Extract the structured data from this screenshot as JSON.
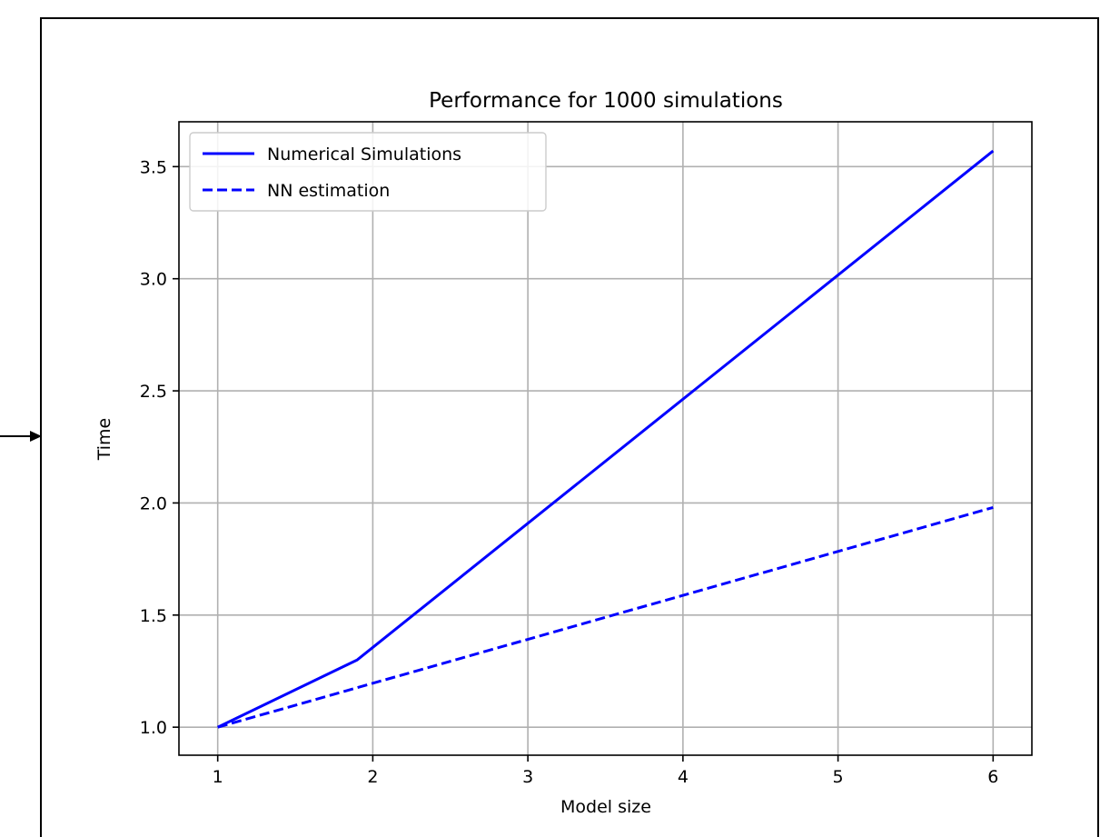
{
  "chart_data": {
    "type": "line",
    "title": "Performance for 1000 simulations",
    "xlabel": "Model size",
    "ylabel": "Time",
    "xlim": [
      0.75,
      6.25
    ],
    "ylim": [
      0.875,
      3.7
    ],
    "xticks": [
      1,
      2,
      3,
      4,
      5,
      6
    ],
    "yticks": [
      1.0,
      1.5,
      2.0,
      2.5,
      3.0,
      3.5
    ],
    "xtick_labels": [
      "1",
      "2",
      "3",
      "4",
      "5",
      "6"
    ],
    "ytick_labels": [
      "1.0",
      "1.5",
      "2.0",
      "2.5",
      "3.0",
      "3.5"
    ],
    "grid": true,
    "legend_position": "upper-left",
    "series": [
      {
        "name": "Numerical Simulations",
        "style": "solid",
        "color": "#0000ff",
        "x": [
          1,
          1.9,
          6
        ],
        "y": [
          1.0,
          1.3,
          3.57
        ]
      },
      {
        "name": "NN estimation",
        "style": "dashed",
        "color": "#0000ff",
        "x": [
          1,
          6
        ],
        "y": [
          1.0,
          1.98
        ]
      }
    ]
  }
}
